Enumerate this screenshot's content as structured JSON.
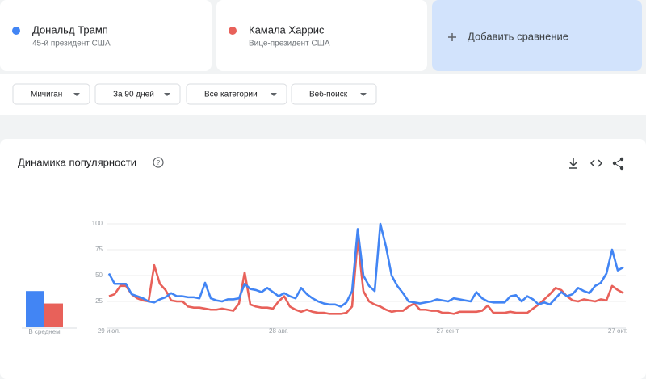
{
  "header": {
    "terms": [
      {
        "name": "Дональд Трамп",
        "subtitle": "45-й президент США"
      },
      {
        "name": "Камала Харрис",
        "subtitle": "Вице-президент США"
      }
    ],
    "add_comparison": "Добавить сравнение"
  },
  "filters": [
    "Мичиган",
    "За 90 дней",
    "Все категории",
    "Веб-поиск"
  ],
  "chart_data": {
    "type": "line",
    "title": "Динамика популярности",
    "average_label": "В среднем",
    "categories": [
      "29 июл.",
      null,
      null,
      null,
      null,
      null,
      null,
      null,
      null,
      null,
      null,
      null,
      null,
      null,
      null,
      null,
      null,
      null,
      null,
      null,
      null,
      null,
      null,
      null,
      null,
      null,
      null,
      null,
      null,
      null,
      "28 авг.",
      null,
      null,
      null,
      null,
      null,
      null,
      null,
      null,
      null,
      null,
      null,
      null,
      null,
      null,
      null,
      null,
      null,
      null,
      null,
      null,
      null,
      null,
      null,
      null,
      null,
      null,
      null,
      null,
      null,
      "27 сент.",
      null,
      null,
      null,
      null,
      null,
      null,
      null,
      null,
      null,
      null,
      null,
      null,
      null,
      null,
      null,
      null,
      null,
      null,
      null,
      null,
      null,
      null,
      null,
      null,
      null,
      null,
      null,
      null,
      null,
      "27 окт.",
      null
    ],
    "series": [
      {
        "name": "Дональд Трамп",
        "color": "#4285f4",
        "average": 35,
        "values": [
          52,
          42,
          42,
          42,
          32,
          30,
          28,
          25,
          24,
          27,
          29,
          33,
          30,
          30,
          29,
          29,
          28,
          43,
          28,
          26,
          25,
          27,
          27,
          28,
          42,
          37,
          36,
          34,
          38,
          34,
          30,
          33,
          30,
          28,
          38,
          32,
          28,
          25,
          23,
          22,
          22,
          20,
          24,
          35,
          95,
          50,
          40,
          35,
          100,
          78,
          50,
          40,
          33,
          25,
          24,
          23,
          24,
          25,
          27,
          26,
          25,
          28,
          27,
          26,
          25,
          34,
          28,
          25,
          24,
          24,
          24,
          30,
          31,
          25,
          30,
          27,
          22,
          24,
          22,
          28,
          34,
          30,
          32,
          38,
          35,
          33,
          40,
          43,
          52,
          75,
          55,
          58
        ]
      },
      {
        "name": "Камала Харрис",
        "color": "#e8615a",
        "average": 23,
        "values": [
          30,
          32,
          40,
          40,
          32,
          28,
          26,
          25,
          60,
          42,
          36,
          26,
          25,
          25,
          20,
          19,
          19,
          18,
          17,
          17,
          18,
          17,
          16,
          23,
          53,
          22,
          20,
          19,
          19,
          18,
          25,
          30,
          20,
          17,
          15,
          17,
          15,
          14,
          14,
          13,
          13,
          13,
          14,
          20,
          85,
          35,
          25,
          22,
          20,
          17,
          15,
          16,
          16,
          20,
          23,
          17,
          17,
          16,
          16,
          14,
          14,
          13,
          15,
          15,
          15,
          15,
          16,
          21,
          14,
          14,
          14,
          15,
          14,
          14,
          14,
          18,
          22,
          27,
          32,
          38,
          36,
          30,
          26,
          25,
          27,
          26,
          25,
          27,
          26,
          40,
          36,
          33
        ]
      }
    ],
    "ylim": [
      0,
      100
    ],
    "yticks": [
      25,
      50,
      75,
      100
    ],
    "grid": true
  }
}
